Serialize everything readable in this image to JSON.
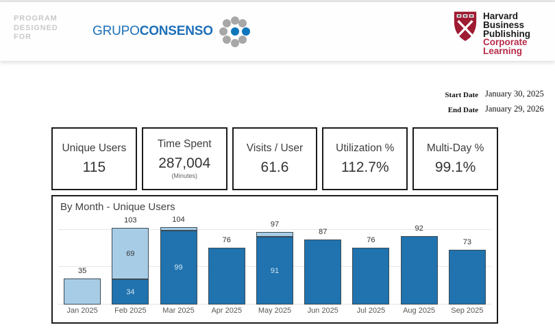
{
  "header": {
    "program_designed_for": [
      "PROGRAM",
      "DESIGNED",
      "FOR"
    ],
    "logo_grupo": "GRUPO",
    "logo_consenso": "CONSENSO",
    "logo_colors": {
      "text_blue": "#1d6fb8",
      "dot_gray": "#a7a7a7",
      "dot_blue": "#0e76bc"
    },
    "hbp": {
      "black_lines": [
        "Harvard",
        "Business",
        "Publishing"
      ],
      "red_lines": [
        "Corporate",
        "Learning"
      ],
      "red_color": "#b72a49",
      "shield_color": "#9e1b32"
    }
  },
  "dates": {
    "start_label": "Start Date",
    "start_value": "January 30, 2025",
    "end_label": "End Date",
    "end_value": "January 29, 2026"
  },
  "kpis": [
    {
      "label": "Unique Users",
      "value": "115",
      "sub": ""
    },
    {
      "label": "Time Spent",
      "value": "287,004",
      "sub": "(Minutes)"
    },
    {
      "label": "Visits / User",
      "value": "61.6",
      "sub": ""
    },
    {
      "label": "Utilization %",
      "value": "112.7%",
      "sub": ""
    },
    {
      "label": "Multi-Day %",
      "value": "99.1%",
      "sub": ""
    }
  ],
  "chart_data": {
    "type": "bar",
    "stacked": true,
    "title": "By Month - Unique Users",
    "categories": [
      "Jan 2025",
      "Feb 2025",
      "Mar 2025",
      "Apr 2025",
      "May 2025",
      "Jun 2025",
      "Jul 2025",
      "Aug 2025",
      "Sep 2025"
    ],
    "series": [
      {
        "name": "dark-blue-segment",
        "color": "#2073ae",
        "values": [
          0,
          34,
          99,
          76,
          91,
          87,
          76,
          92,
          73
        ],
        "inside_labels": [
          null,
          "34",
          "99",
          null,
          "91",
          null,
          null,
          null,
          null
        ]
      },
      {
        "name": "light-blue-segment",
        "color": "#a7cce6",
        "values": [
          35,
          69,
          5,
          0,
          6,
          0,
          0,
          0,
          0
        ],
        "inside_labels": [
          null,
          "69",
          null,
          null,
          null,
          null,
          null,
          null,
          null
        ]
      }
    ],
    "totals": [
      "35",
      "103",
      "104",
      "76",
      "97",
      "87",
      "76",
      "92",
      "73"
    ],
    "ylim": [
      0,
      122
    ],
    "gridlines": [
      50,
      100
    ],
    "bar_outline_color": "#3a4a55",
    "grid_color": "#e7e7e7",
    "total_label_color": "#2f2f2f",
    "inside_label_color_on_dark": "#d3e5f3",
    "inside_label_color_on_light": "#3a3a3a",
    "axis_label_color": "#575757",
    "xlabel": "",
    "ylabel": "",
    "legend": "none"
  }
}
